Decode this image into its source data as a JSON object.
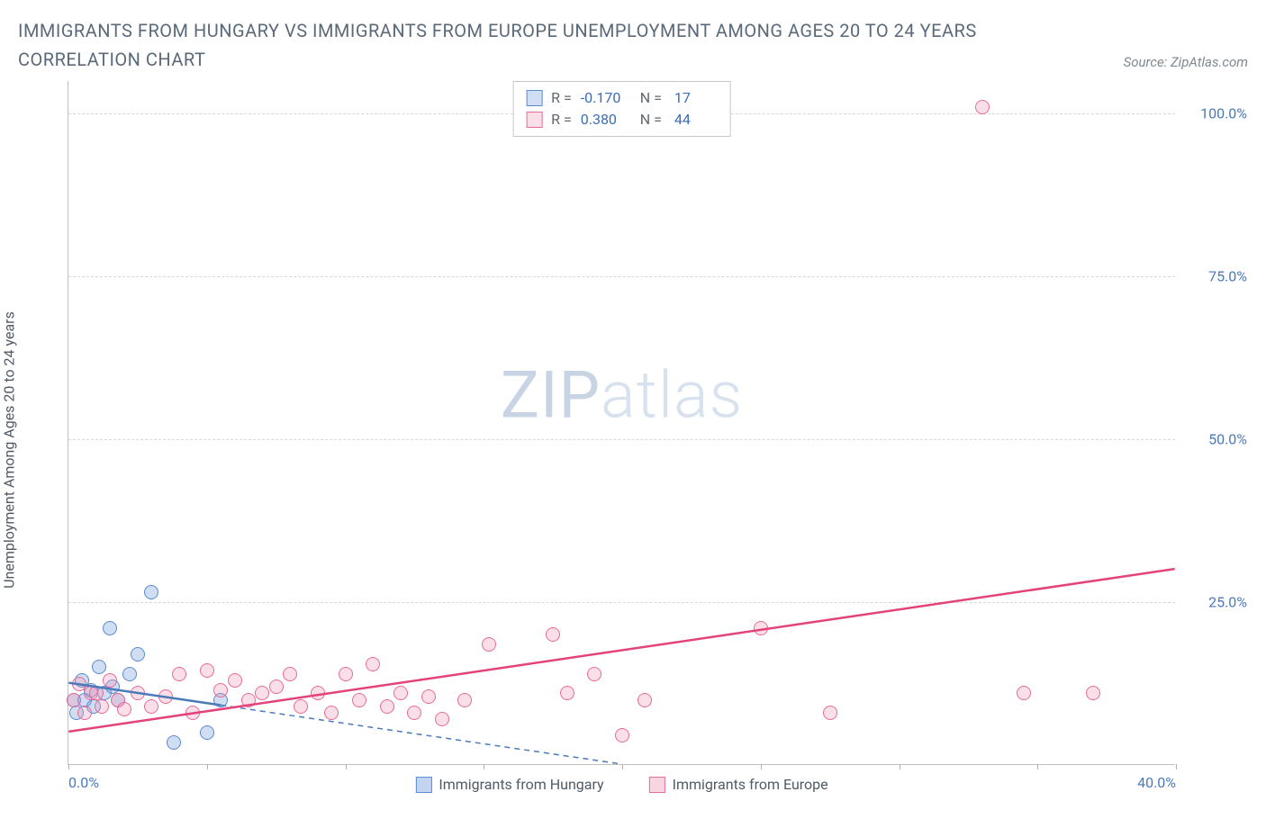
{
  "title": "IMMIGRANTS FROM HUNGARY VS IMMIGRANTS FROM EUROPE UNEMPLOYMENT AMONG AGES 20 TO 24 YEARS CORRELATION CHART",
  "source_prefix": "Source: ",
  "source_link": "ZipAtlas.com",
  "y_axis_label": "Unemployment Among Ages 20 to 24 years",
  "watermark_zip": "ZIP",
  "watermark_atlas": "atlas",
  "chart": {
    "type": "scatter",
    "background": "#ffffff",
    "grid_color": "#d8d8d8",
    "axis_color": "#c0c0c0",
    "tick_label_color": "#4a7ab8",
    "xlim": [
      0,
      40
    ],
    "ylim": [
      0,
      105
    ],
    "y_ticks": [
      25,
      50,
      75,
      100
    ],
    "y_tick_labels": [
      "25.0%",
      "50.0%",
      "75.0%",
      "100.0%"
    ],
    "x_ticks": [
      0,
      5,
      10,
      15,
      20,
      25,
      30,
      35,
      40
    ],
    "x_tick_labels_shown": {
      "0": "0.0%",
      "40": "40.0%"
    },
    "series": [
      {
        "name": "Immigrants from Hungary",
        "marker_fill": "rgba(120,160,220,0.35)",
        "marker_stroke": "#5a8ad0",
        "marker_size": 16,
        "line_color": "#4a7ab8",
        "R": "-0.170",
        "N": "17",
        "trend": {
          "x1": 0,
          "y1": 12.5,
          "x2": 20,
          "y2": 0,
          "dashed_after_x": 5.5
        },
        "points": [
          [
            0.2,
            10
          ],
          [
            0.3,
            8
          ],
          [
            0.5,
            13
          ],
          [
            0.6,
            10
          ],
          [
            0.8,
            11.5
          ],
          [
            0.9,
            9
          ],
          [
            1.1,
            15
          ],
          [
            1.3,
            11
          ],
          [
            1.5,
            21
          ],
          [
            1.6,
            12
          ],
          [
            1.8,
            10
          ],
          [
            2.2,
            14
          ],
          [
            2.5,
            17
          ],
          [
            3.0,
            26.5
          ],
          [
            3.8,
            3.5
          ],
          [
            5.0,
            5
          ],
          [
            5.5,
            10
          ]
        ]
      },
      {
        "name": "Immigrants from Europe",
        "marker_fill": "rgba(240,150,180,0.30)",
        "marker_stroke": "#e86a9a",
        "marker_size": 16,
        "line_color": "#e3437a",
        "R": "0.380",
        "N": "44",
        "trend": {
          "x1": 0,
          "y1": 5,
          "x2": 40,
          "y2": 30,
          "dashed_after_x": null
        },
        "points": [
          [
            0.2,
            10
          ],
          [
            0.4,
            12.5
          ],
          [
            0.6,
            8
          ],
          [
            0.8,
            11
          ],
          [
            1.0,
            11
          ],
          [
            1.2,
            9
          ],
          [
            1.5,
            13
          ],
          [
            1.8,
            10
          ],
          [
            2.0,
            8.5
          ],
          [
            2.5,
            11
          ],
          [
            3.0,
            9
          ],
          [
            3.5,
            10.5
          ],
          [
            4.0,
            14
          ],
          [
            4.5,
            8
          ],
          [
            5.0,
            14.5
          ],
          [
            5.5,
            11.5
          ],
          [
            6.0,
            13
          ],
          [
            6.5,
            10
          ],
          [
            7.0,
            11
          ],
          [
            7.5,
            12
          ],
          [
            8.0,
            14
          ],
          [
            8.4,
            9
          ],
          [
            9.0,
            11
          ],
          [
            9.5,
            8
          ],
          [
            10.0,
            14
          ],
          [
            10.5,
            10
          ],
          [
            11.0,
            15.5
          ],
          [
            11.5,
            9
          ],
          [
            12.0,
            11
          ],
          [
            12.5,
            8
          ],
          [
            13.0,
            10.5
          ],
          [
            13.5,
            7
          ],
          [
            14.3,
            10
          ],
          [
            15.2,
            18.5
          ],
          [
            17.5,
            20
          ],
          [
            18.0,
            11
          ],
          [
            19.0,
            14
          ],
          [
            20.0,
            4.5
          ],
          [
            20.8,
            10
          ],
          [
            25.0,
            21
          ],
          [
            27.5,
            8
          ],
          [
            33.0,
            101
          ],
          [
            34.5,
            11
          ],
          [
            37.0,
            11
          ]
        ]
      }
    ]
  },
  "legend_bottom": [
    {
      "swatch_fill": "rgba(120,160,220,0.45)",
      "swatch_stroke": "#5a8ad0",
      "label": "Immigrants from Hungary"
    },
    {
      "swatch_fill": "rgba(240,150,180,0.40)",
      "swatch_stroke": "#e86a9a",
      "label": "Immigrants from Europe"
    }
  ]
}
